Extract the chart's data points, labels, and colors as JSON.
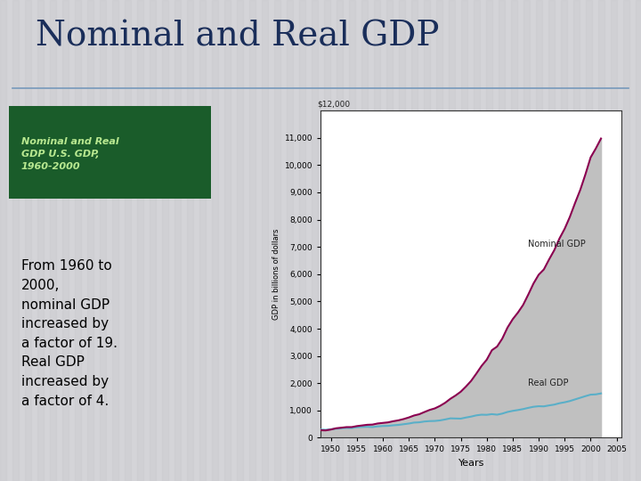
{
  "title": "Nominal and Real GDP",
  "title_color": "#1a2e5a",
  "title_fontsize": 28,
  "subtitle_box_text": "Nominal and Real\nGDP U.S. GDP,\n1960-2000",
  "body_text": "From 1960 to\n2000,\nnominal GDP\nincreased by\na factor of 19.\nReal GDP\nincreased by\na factor of 4.",
  "ylabel": "GDP in billions of dollars",
  "xlabel": "Years",
  "yticks": [
    0,
    1000,
    2000,
    3000,
    4000,
    5000,
    6000,
    7000,
    8000,
    9000,
    10000,
    11000
  ],
  "ytick_top_label": "$12,000",
  "xticks": [
    1950,
    1955,
    1960,
    1965,
    1970,
    1975,
    1980,
    1985,
    1990,
    1995,
    2000,
    2005
  ],
  "xlim": [
    1948,
    2006
  ],
  "ylim": [
    0,
    12000
  ],
  "nominal_label": "Nominal GDP",
  "real_label": "Real GDP",
  "nominal_color": "#8b0050",
  "real_color": "#5aafc8",
  "fill_color": "#c0c0c0",
  "slide_bg": "#d4d4d8",
  "stripe_color": "#c8c8cc",
  "chart_bg": "#ffffff",
  "left_panel_bg": "#d4f0c8",
  "subtitle_bg": "#1a5c2a",
  "subtitle_text_color": "#b8e890",
  "body_text_color": "#000000",
  "years": [
    1948,
    1949,
    1950,
    1951,
    1952,
    1953,
    1954,
    1955,
    1956,
    1957,
    1958,
    1959,
    1960,
    1961,
    1962,
    1963,
    1964,
    1965,
    1966,
    1967,
    1968,
    1969,
    1970,
    1971,
    1972,
    1973,
    1974,
    1975,
    1976,
    1977,
    1978,
    1979,
    1980,
    1981,
    1982,
    1983,
    1984,
    1985,
    1986,
    1987,
    1988,
    1989,
    1990,
    1991,
    1992,
    1993,
    1994,
    1995,
    1996,
    1997,
    1998,
    1999,
    2000,
    2001,
    2002
  ],
  "nominal_gdp": [
    274,
    268,
    300,
    347,
    367,
    389,
    390,
    426,
    450,
    474,
    482,
    522,
    543,
    563,
    605,
    638,
    685,
    743,
    815,
    861,
    942,
    1019,
    1075,
    1167,
    1282,
    1428,
    1549,
    1688,
    1877,
    2086,
    2352,
    2632,
    2862,
    3211,
    3345,
    3638,
    4041,
    4347,
    4590,
    4870,
    5252,
    5657,
    5979,
    6174,
    6539,
    6879,
    7307,
    7664,
    8100,
    8608,
    9089,
    9661,
    10283,
    10611,
    10977
  ],
  "real_gdp": [
    300,
    290,
    310,
    330,
    345,
    360,
    355,
    385,
    395,
    400,
    390,
    415,
    430,
    435,
    455,
    470,
    495,
    520,
    555,
    565,
    595,
    610,
    615,
    635,
    670,
    710,
    705,
    700,
    740,
    775,
    820,
    845,
    840,
    865,
    845,
    885,
    945,
    985,
    1015,
    1050,
    1095,
    1135,
    1155,
    1150,
    1185,
    1215,
    1265,
    1300,
    1345,
    1405,
    1465,
    1525,
    1580,
    1590,
    1625
  ]
}
